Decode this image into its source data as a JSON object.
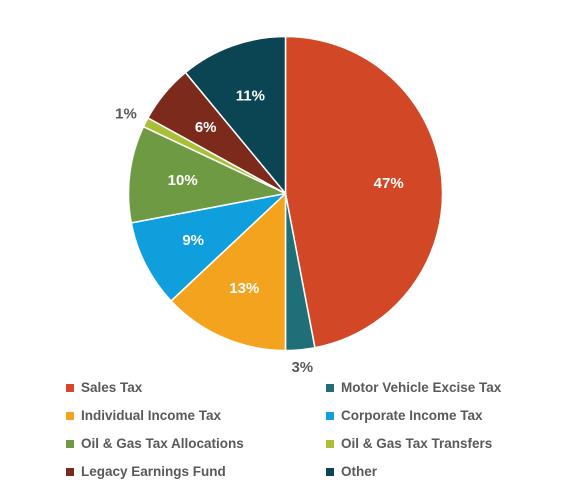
{
  "chart_data": {
    "type": "pie",
    "title": "",
    "start_angle_deg": 0,
    "direction": "clockwise",
    "legend_position": "bottom",
    "slices": [
      {
        "label": "Sales Tax",
        "value": 47,
        "value_label": "47%",
        "color": "#D24726",
        "label_color": "#ffffff",
        "label_placement": "inside"
      },
      {
        "label": "Motor Vehicle Excise Tax",
        "value": 3,
        "value_label": "3%",
        "color": "#1F6F78",
        "label_color": "#595959",
        "label_placement": "outside"
      },
      {
        "label": "Individual Income Tax",
        "value": 13,
        "value_label": "13%",
        "color": "#F4A31F",
        "label_color": "#ffffff",
        "label_placement": "inside"
      },
      {
        "label": "Corporate Income Tax",
        "value": 9,
        "value_label": "9%",
        "color": "#0E9FDC",
        "label_color": "#ffffff",
        "label_placement": "inside"
      },
      {
        "label": "Oil & Gas Tax Allocations",
        "value": 10,
        "value_label": "10%",
        "color": "#6E9A43",
        "label_color": "#ffffff",
        "label_placement": "inside"
      },
      {
        "label": "Oil & Gas Tax Transfers",
        "value": 1,
        "value_label": "1%",
        "color": "#A9BF38",
        "label_color": "#595959",
        "label_placement": "outside"
      },
      {
        "label": "Legacy Earnings Fund",
        "value": 6,
        "value_label": "6%",
        "color": "#7B2A1C",
        "label_color": "#ffffff",
        "label_placement": "inside"
      },
      {
        "label": "Other",
        "value": 11,
        "value_label": "11%",
        "color": "#0B4553",
        "label_color": "#ffffff",
        "label_placement": "inside"
      }
    ]
  }
}
